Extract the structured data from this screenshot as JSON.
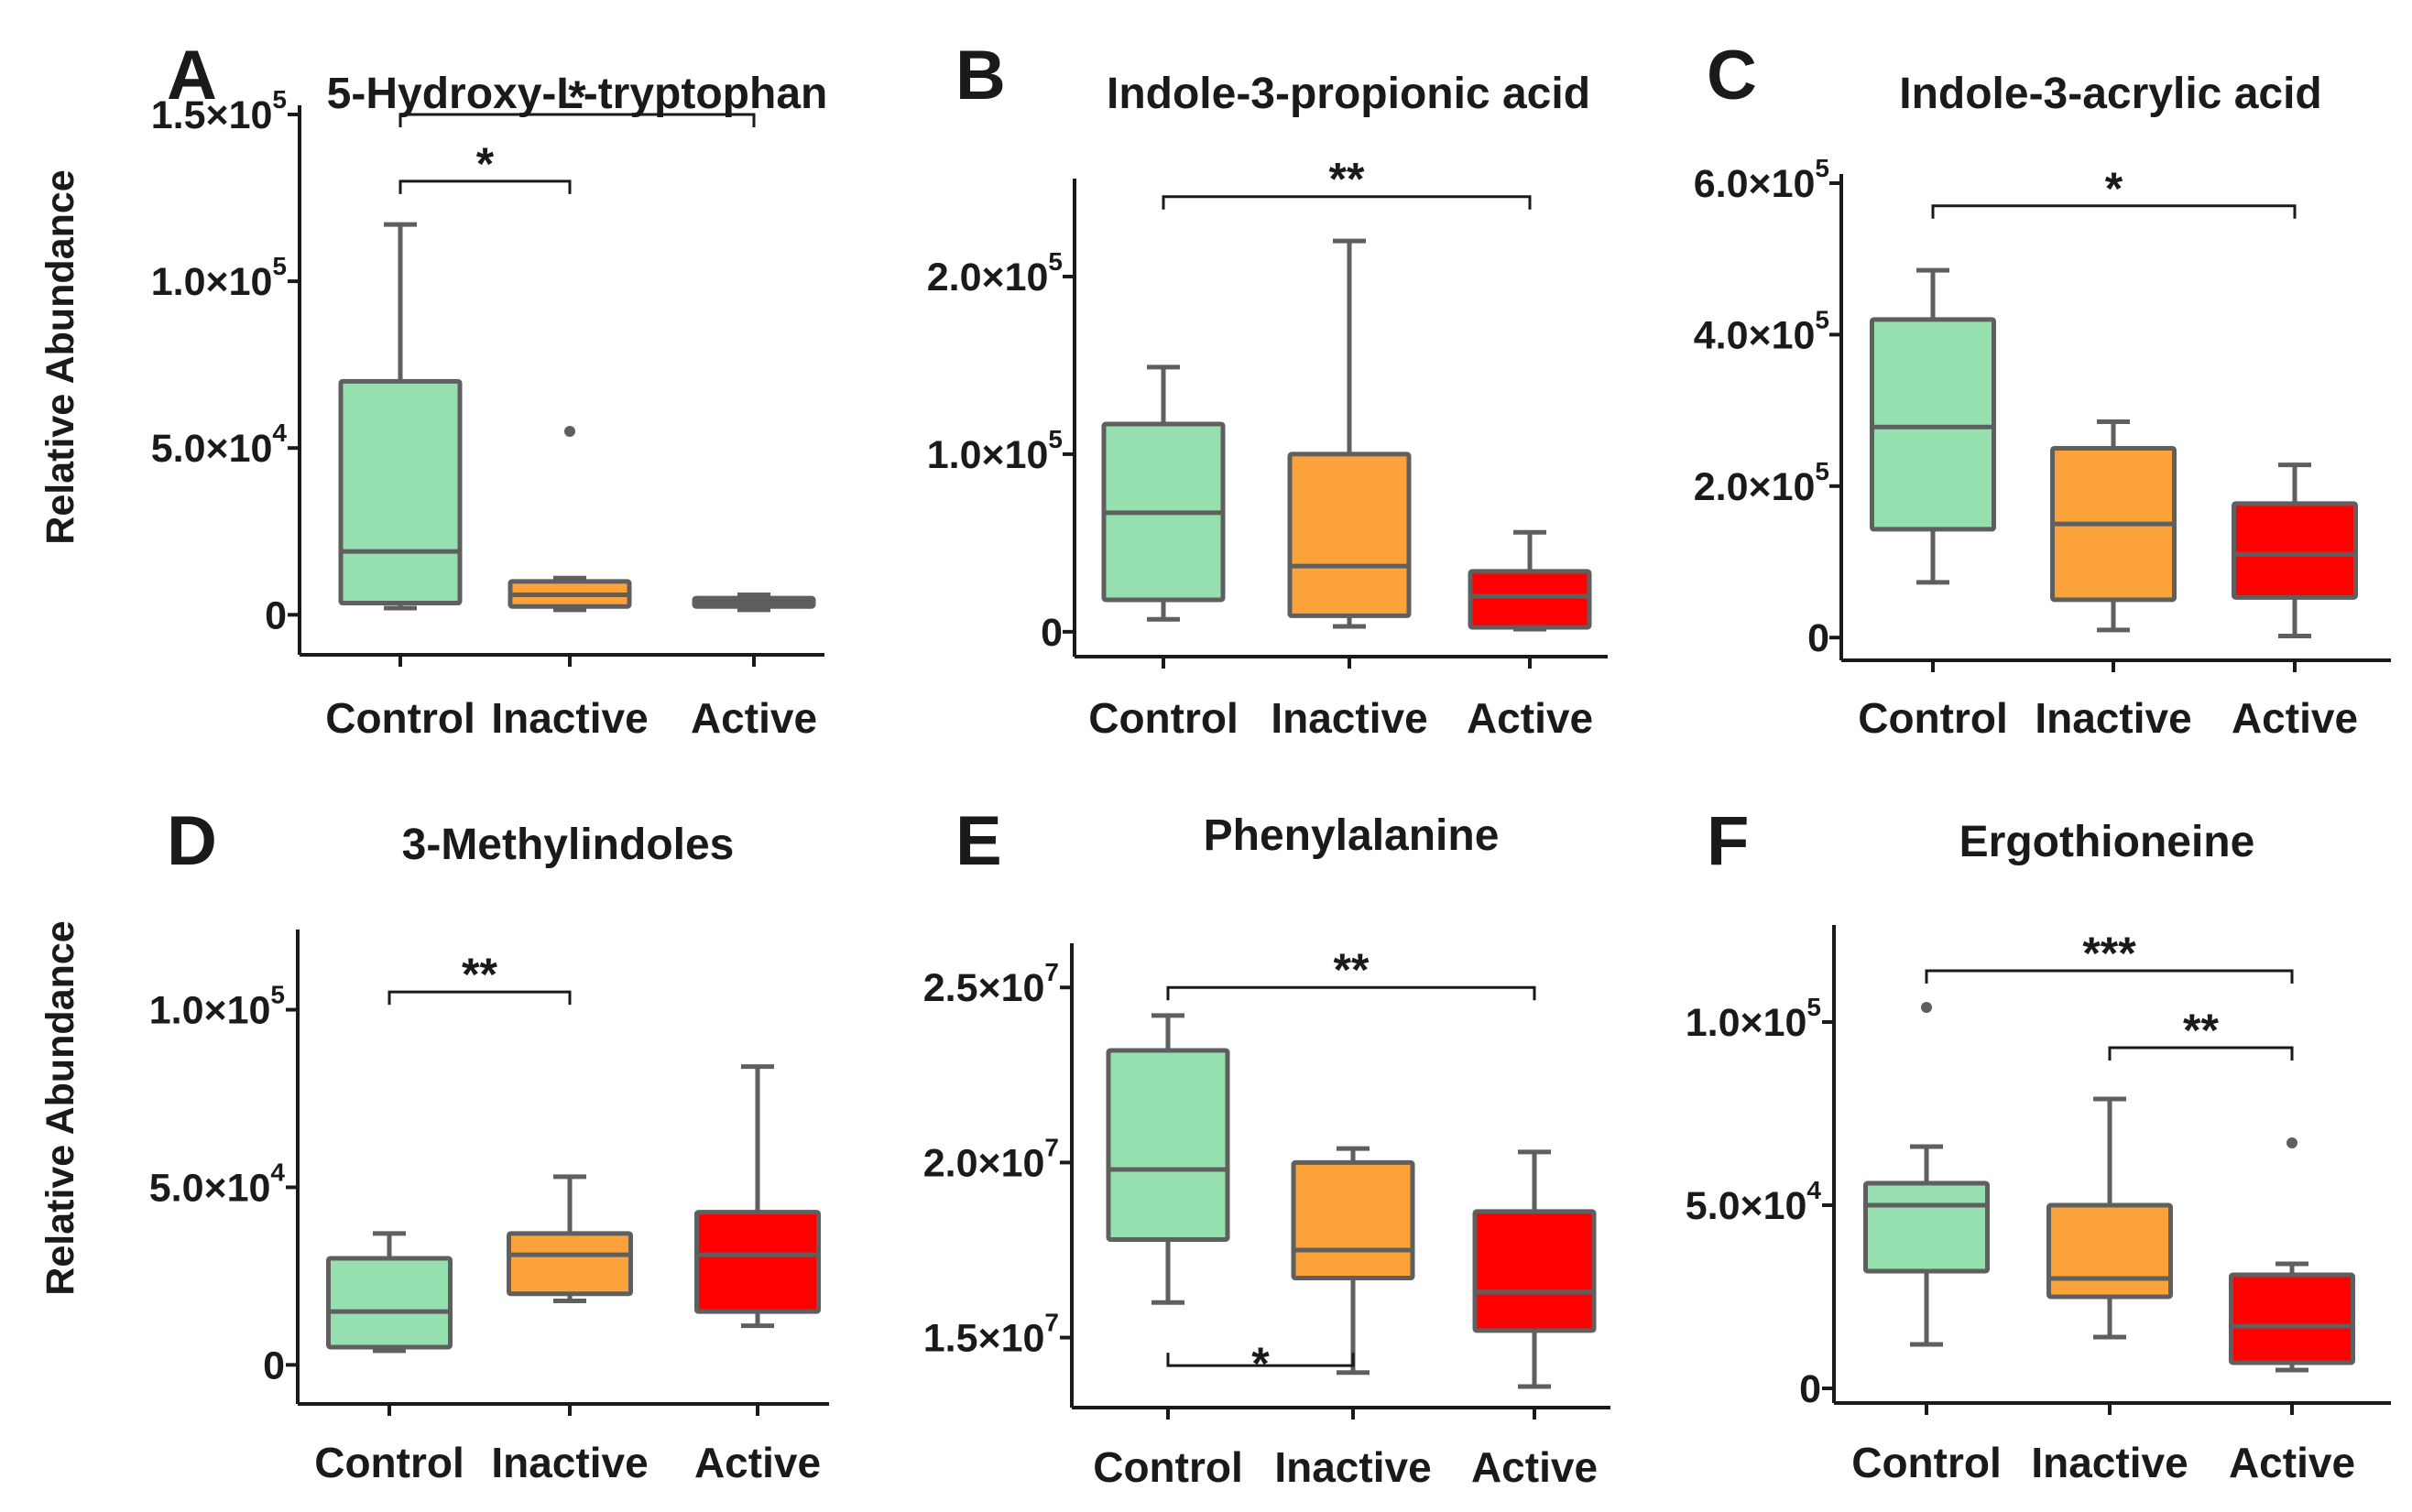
{
  "chart_data": [
    {
      "type": "box",
      "panel": "A",
      "title": "5-Hydroxy-L-tryptophan",
      "ylabel": "Relative Abundance",
      "categories": [
        "Control",
        "Inactive",
        "Active"
      ],
      "ylim": [
        -12000,
        150000
      ],
      "ticks": [
        {
          "value": 0,
          "base": "0",
          "exp": ""
        },
        {
          "value": 50000,
          "base": "5.0×10",
          "exp": "4"
        },
        {
          "value": 100000,
          "base": "1.0×10",
          "exp": "5"
        },
        {
          "value": 150000,
          "base": "1.5×10",
          "exp": "5"
        }
      ],
      "boxes": [
        {
          "category": "Control",
          "color": "#96e0b0",
          "min": 2000,
          "q1": 3500,
          "median": 19000,
          "q3": 70000,
          "max": 117000,
          "outliers": []
        },
        {
          "category": "Inactive",
          "color": "#fba33a",
          "min": 1500,
          "q1": 2500,
          "median": 6000,
          "q3": 10000,
          "max": 11000,
          "outliers": [
            55000
          ]
        },
        {
          "category": "Active",
          "color": "#ff0000",
          "min": 1500,
          "q1": 2500,
          "median": 3500,
          "q3": 5000,
          "max": 6000,
          "outliers": []
        }
      ],
      "significance": [
        {
          "from": 0,
          "to": 1,
          "label": "*",
          "y": 130000
        },
        {
          "from": 0,
          "to": 2,
          "label": "*",
          "y": 150000
        }
      ]
    },
    {
      "type": "box",
      "panel": "B",
      "title": "Indole-3-propionic acid",
      "ylabel": "",
      "categories": [
        "Control",
        "Inactive",
        "Active"
      ],
      "ylim": [
        -14000,
        250000
      ],
      "ticks": [
        {
          "value": 0,
          "base": "0",
          "exp": ""
        },
        {
          "value": 100000,
          "base": "1.0×10",
          "exp": "5"
        },
        {
          "value": 200000,
          "base": "2.0×10",
          "exp": "5"
        }
      ],
      "boxes": [
        {
          "category": "Control",
          "color": "#96e0b0",
          "min": 7000,
          "q1": 18000,
          "median": 67000,
          "q3": 117000,
          "max": 149000,
          "outliers": []
        },
        {
          "category": "Inactive",
          "color": "#fba33a",
          "min": 3000,
          "q1": 9000,
          "median": 37000,
          "q3": 100000,
          "max": 220000,
          "outliers": []
        },
        {
          "category": "Active",
          "color": "#ff0000",
          "min": 1500,
          "q1": 2500,
          "median": 20000,
          "q3": 34000,
          "max": 56000,
          "outliers": []
        }
      ],
      "significance": [
        {
          "from": 0,
          "to": 2,
          "label": "**",
          "y": 245000
        }
      ]
    },
    {
      "type": "box",
      "panel": "C",
      "title": "Indole-3-acrylic acid",
      "ylabel": "",
      "categories": [
        "Control",
        "Inactive",
        "Active"
      ],
      "ylim": [
        -30000,
        600000
      ],
      "ticks": [
        {
          "value": 0,
          "base": "0",
          "exp": ""
        },
        {
          "value": 200000,
          "base": "2.0×10",
          "exp": "5"
        },
        {
          "value": 400000,
          "base": "4.0×10",
          "exp": "5"
        },
        {
          "value": 600000,
          "base": "6.0×10",
          "exp": "5"
        }
      ],
      "boxes": [
        {
          "category": "Control",
          "color": "#96e0b0",
          "min": 73000,
          "q1": 143000,
          "median": 278000,
          "q3": 420000,
          "max": 485000,
          "outliers": []
        },
        {
          "category": "Inactive",
          "color": "#fba33a",
          "min": 10000,
          "q1": 50000,
          "median": 150000,
          "q3": 250000,
          "max": 285000,
          "outliers": []
        },
        {
          "category": "Active",
          "color": "#ff0000",
          "min": 2000,
          "q1": 53000,
          "median": 110000,
          "q3": 177000,
          "max": 228000,
          "outliers": []
        }
      ],
      "significance": [
        {
          "from": 0,
          "to": 2,
          "label": "*",
          "y": 570000
        }
      ]
    },
    {
      "type": "box",
      "panel": "D",
      "title": "3-Methylindoles",
      "ylabel": "Relative Abundance",
      "categories": [
        "Control",
        "Inactive",
        "Active"
      ],
      "ylim": [
        -11000,
        120000
      ],
      "ticks": [
        {
          "value": 0,
          "base": "0",
          "exp": ""
        },
        {
          "value": 50000,
          "base": "5.0×10",
          "exp": "4"
        },
        {
          "value": 100000,
          "base": "1.0×10",
          "exp": "5"
        }
      ],
      "boxes": [
        {
          "category": "Control",
          "color": "#96e0b0",
          "min": 4000,
          "q1": 5000,
          "median": 15000,
          "q3": 30000,
          "max": 37000,
          "outliers": []
        },
        {
          "category": "Inactive",
          "color": "#fba33a",
          "min": 18000,
          "q1": 20000,
          "median": 31000,
          "q3": 37000,
          "max": 53000,
          "outliers": []
        },
        {
          "category": "Active",
          "color": "#ff0000",
          "min": 11000,
          "q1": 15000,
          "median": 31000,
          "q3": 43000,
          "max": 84000,
          "outliers": []
        }
      ],
      "significance": [
        {
          "from": 0,
          "to": 1,
          "label": "**",
          "y": 105000
        }
      ]
    },
    {
      "type": "box",
      "panel": "E",
      "title": "Phenylalanine",
      "ylabel": "",
      "categories": [
        "Control",
        "Inactive",
        "Active"
      ],
      "ylim": [
        13000000,
        26000000
      ],
      "ticks": [
        {
          "value": 15000000,
          "base": "1.5×10",
          "exp": "7"
        },
        {
          "value": 20000000,
          "base": "2.0×10",
          "exp": "7"
        },
        {
          "value": 25000000,
          "base": "2.5×10",
          "exp": "7"
        }
      ],
      "boxes": [
        {
          "category": "Control",
          "color": "#96e0b0",
          "min": 16000000,
          "q1": 17800000,
          "median": 19800000,
          "q3": 23200000,
          "max": 24200000,
          "outliers": []
        },
        {
          "category": "Inactive",
          "color": "#fba33a",
          "min": 14000000,
          "q1": 16700000,
          "median": 17500000,
          "q3": 20000000,
          "max": 20400000,
          "outliers": []
        },
        {
          "category": "Active",
          "color": "#ff0000",
          "min": 13600000,
          "q1": 15200000,
          "median": 16300000,
          "q3": 18600000,
          "max": 20300000,
          "outliers": []
        }
      ],
      "significance": [
        {
          "from": 0,
          "to": 2,
          "label": "**",
          "y": 25000000
        },
        {
          "from": 0,
          "to": 1,
          "label": "*",
          "y": 14200000,
          "below": true
        }
      ]
    },
    {
      "type": "box",
      "panel": "F",
      "title": "Ergothioneine",
      "ylabel": "",
      "categories": [
        "Control",
        "Inactive",
        "Active"
      ],
      "ylim": [
        -4000,
        124000
      ],
      "ticks": [
        {
          "value": 0,
          "base": "0",
          "exp": ""
        },
        {
          "value": 50000,
          "base": "5.0×10",
          "exp": "4"
        },
        {
          "value": 100000,
          "base": "1.0×10",
          "exp": "5"
        }
      ],
      "boxes": [
        {
          "category": "Control",
          "color": "#96e0b0",
          "min": 12000,
          "q1": 32000,
          "median": 50000,
          "q3": 56000,
          "max": 66000,
          "outliers": [
            104000
          ]
        },
        {
          "category": "Inactive",
          "color": "#fba33a",
          "min": 14000,
          "q1": 25000,
          "median": 30000,
          "q3": 50000,
          "max": 79000,
          "outliers": []
        },
        {
          "category": "Active",
          "color": "#ff0000",
          "min": 5000,
          "q1": 7000,
          "median": 17000,
          "q3": 31000,
          "max": 34000,
          "outliers": [
            67000
          ]
        }
      ],
      "significance": [
        {
          "from": 0,
          "to": 2,
          "label": "***",
          "y": 114000
        },
        {
          "from": 1,
          "to": 2,
          "label": "**",
          "y": 93000
        }
      ]
    }
  ]
}
